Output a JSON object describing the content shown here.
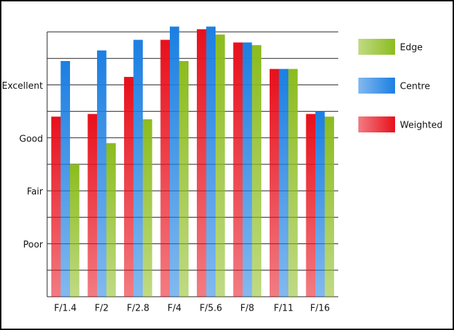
{
  "chart_data": {
    "type": "bar",
    "categories": [
      "F/1.4",
      "F/2",
      "F/2.8",
      "F/4",
      "F/5.6",
      "F/8",
      "F/11",
      "F/16"
    ],
    "series": [
      {
        "name": "Edge",
        "color": "#8cbc1e",
        "values": [
          5.0,
          5.8,
          6.7,
          8.9,
          9.9,
          9.5,
          8.6,
          6.8
        ]
      },
      {
        "name": "Centre",
        "color": "#1c7fe2",
        "values": [
          8.9,
          9.3,
          9.7,
          10.2,
          10.2,
          9.6,
          8.6,
          7.0
        ]
      },
      {
        "name": "Weighted",
        "color": "#e8101c",
        "values": [
          6.8,
          6.9,
          8.3,
          9.7,
          10.1,
          9.6,
          8.6,
          6.9
        ]
      }
    ],
    "ylim": [
      0,
      10
    ],
    "yticks": [
      0,
      {
        "value": 1,
        "label": null
      },
      {
        "value": 2,
        "label": "Poor"
      },
      {
        "value": 3,
        "label": null
      },
      {
        "value": 4,
        "label": "Fair"
      },
      {
        "value": 5,
        "label": null
      },
      {
        "value": 6,
        "label": "Good"
      },
      {
        "value": 7,
        "label": null
      },
      {
        "value": 8,
        "label": "Excellent"
      },
      {
        "value": 9,
        "label": null
      },
      10
    ],
    "grid": true
  }
}
